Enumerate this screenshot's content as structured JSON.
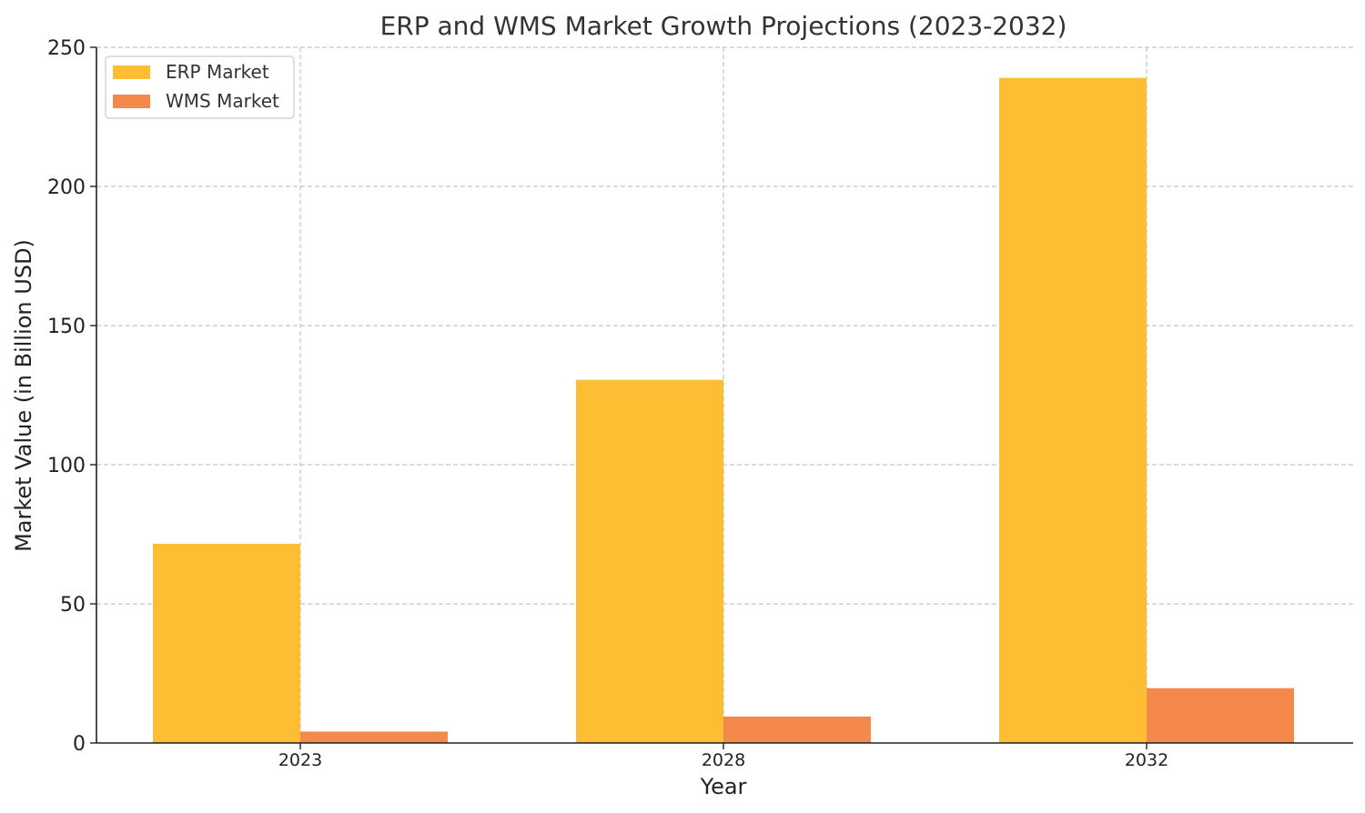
{
  "chart_data": {
    "type": "bar",
    "title": "ERP and WMS Market Growth Projections (2023-2032)",
    "xlabel": "Year",
    "ylabel": "Market Value (in Billion USD)",
    "categories": [
      "2023",
      "2028",
      "2032"
    ],
    "ylim": [
      0,
      250
    ],
    "yticks": [
      0,
      50,
      100,
      150,
      200,
      250
    ],
    "grid": true,
    "legend_position": "top-left",
    "series": [
      {
        "name": "ERP Market",
        "color": "#FDBE33",
        "values": [
          71.6,
          130.5,
          239
        ]
      },
      {
        "name": "WMS Market",
        "color": "#F4894B",
        "values": [
          4.1,
          9.5,
          19.7
        ]
      }
    ]
  }
}
